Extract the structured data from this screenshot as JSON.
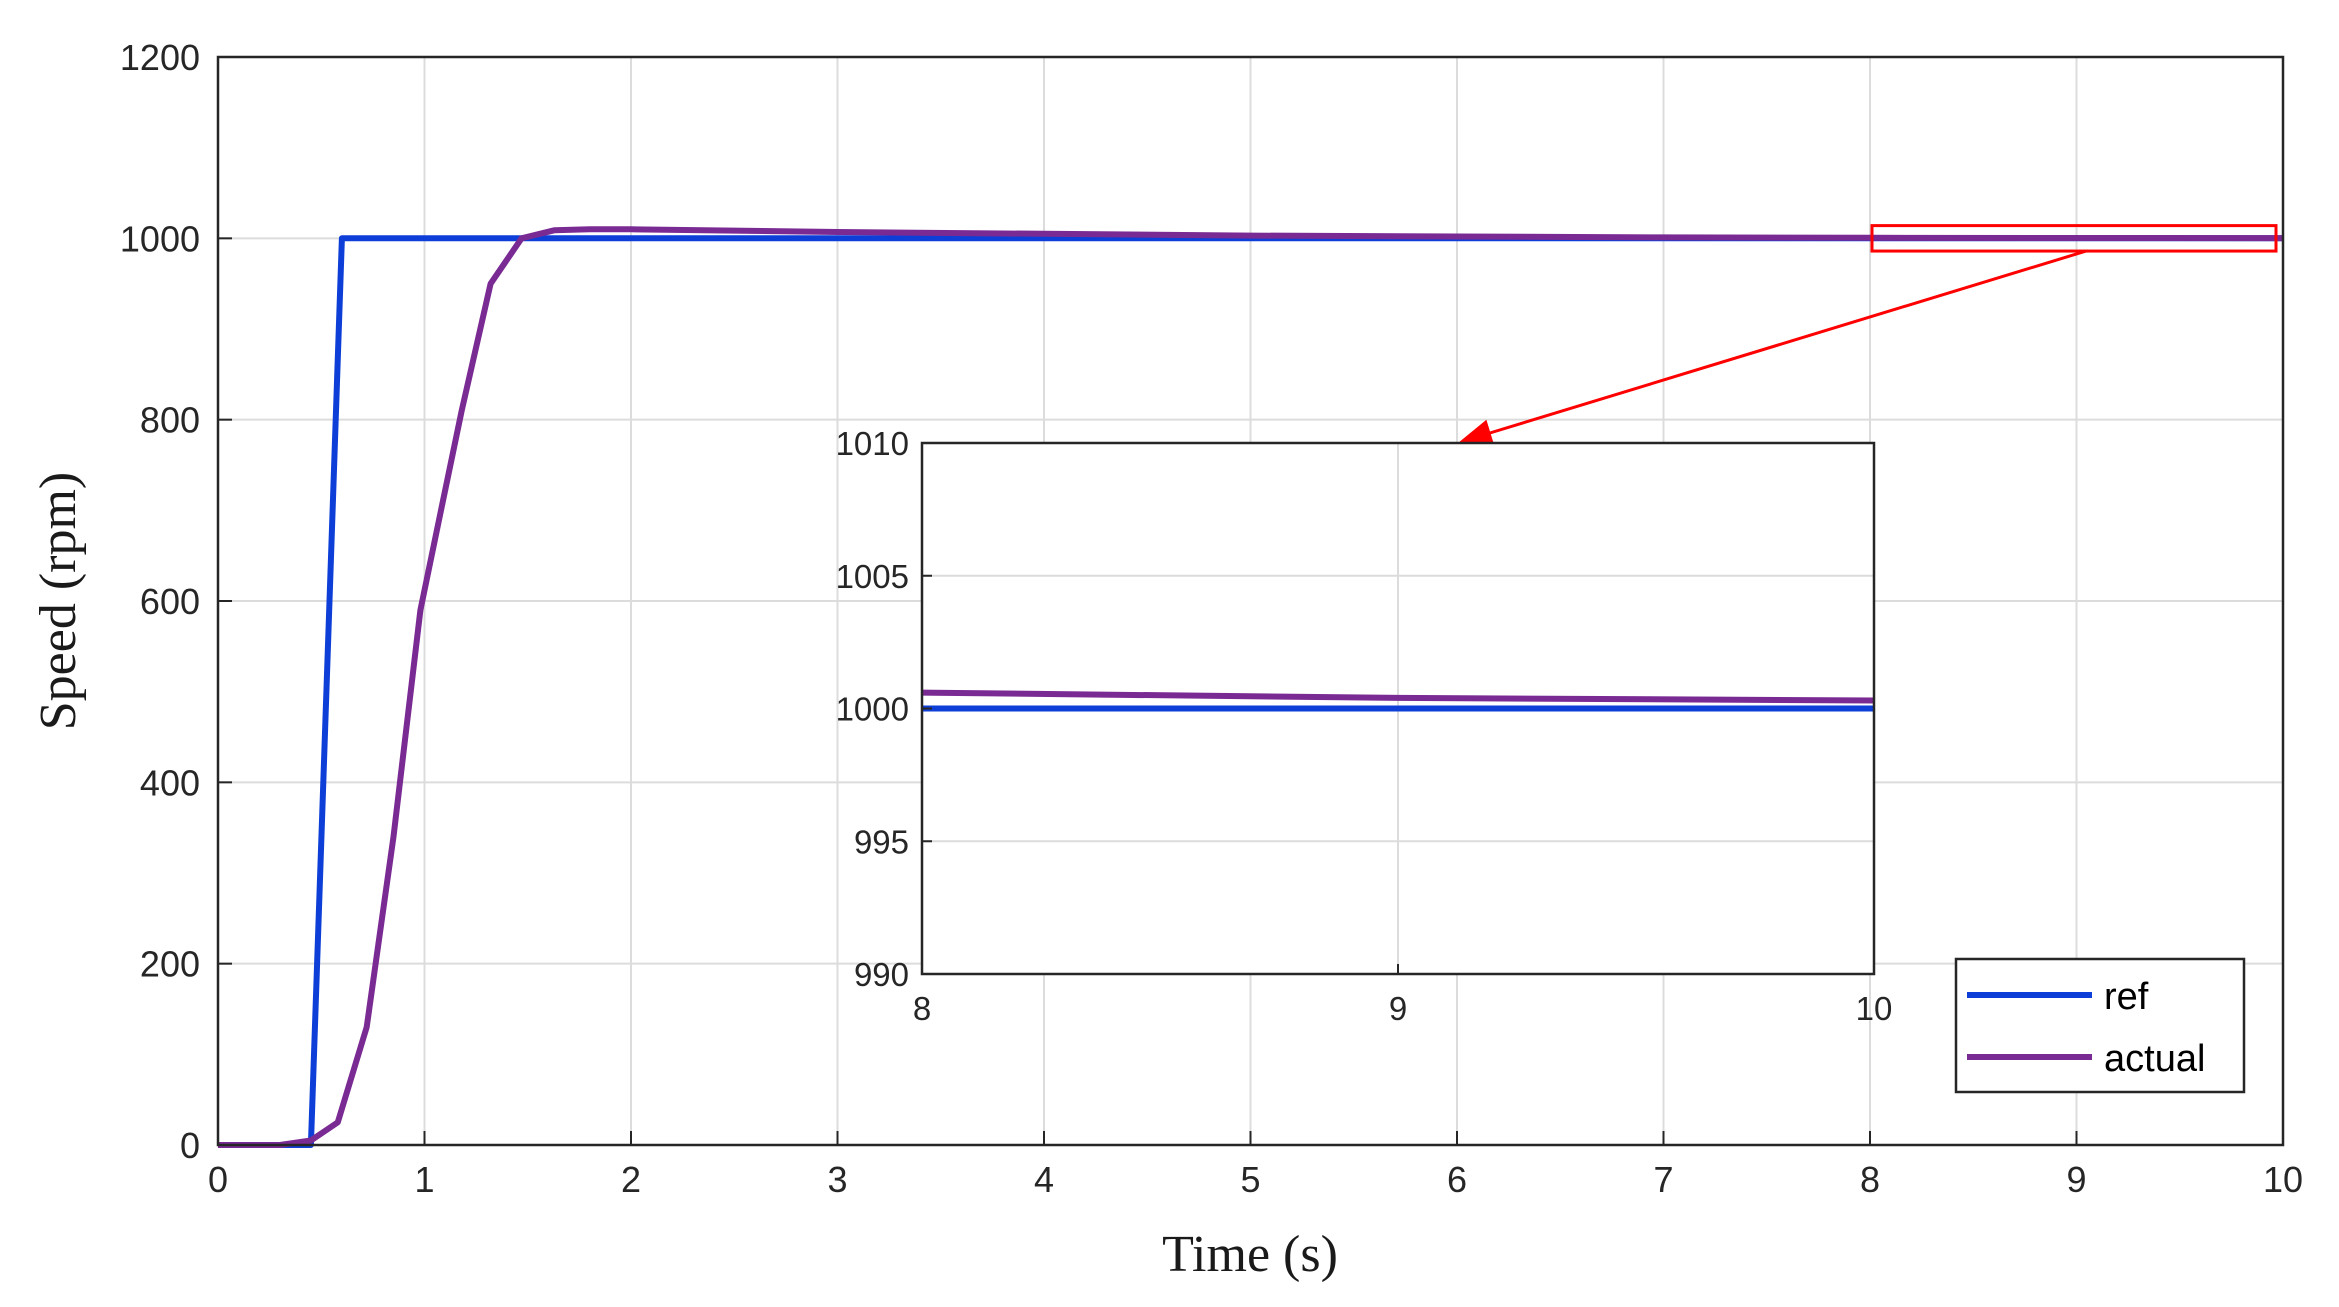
{
  "chart_data": {
    "type": "line",
    "xlabel": "Time (s)",
    "ylabel": "Speed (rpm)",
    "xlim": [
      0,
      10
    ],
    "ylim": [
      0,
      1200
    ],
    "xticks": [
      "0",
      "1",
      "2",
      "3",
      "4",
      "5",
      "6",
      "7",
      "8",
      "9",
      "10"
    ],
    "yticks": [
      "0",
      "200",
      "400",
      "600",
      "800",
      "1000",
      "1200"
    ],
    "grid": true,
    "legend_position": "bottom-right",
    "series": [
      {
        "name": "ref",
        "color": "#0d3fd8",
        "x": [
          0,
          0.45,
          0.6,
          10
        ],
        "y": [
          0,
          0,
          1000,
          1000
        ]
      },
      {
        "name": "actual",
        "color": "#7a2a93",
        "x": [
          0,
          0.3,
          0.45,
          0.58,
          0.72,
          0.85,
          0.98,
          1.08,
          1.18,
          1.32,
          1.47,
          1.63,
          1.8,
          2.0,
          3.0,
          4.0,
          5.0,
          6.0,
          7.0,
          8.0,
          9.0,
          10.0
        ],
        "y": [
          0,
          0,
          5,
          25,
          130,
          340,
          590,
          700,
          810,
          950,
          1000,
          1009,
          1010,
          1010,
          1007,
          1005,
          1003,
          1002,
          1001,
          1000.6,
          1000.4,
          1000.3
        ]
      }
    ],
    "inset": {
      "xlim": [
        8,
        10
      ],
      "ylim": [
        990,
        1010
      ],
      "xticks": [
        "8",
        "9",
        "10"
      ],
      "yticks": [
        "990",
        "995",
        "1000",
        "1005",
        "1010"
      ],
      "grid": true,
      "zoom_region": {
        "x": [
          8,
          10
        ],
        "y": [
          997,
          1003
        ]
      },
      "annotation_color": "#ff0000"
    }
  }
}
